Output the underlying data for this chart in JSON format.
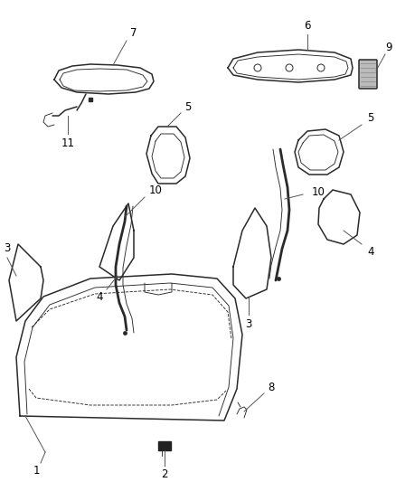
{
  "bg_color": "#ffffff",
  "line_color": "#2a2a2a",
  "label_fontsize": 8.5,
  "leader_color": "#555555",
  "fig_width": 4.38,
  "fig_height": 5.33,
  "dpi": 100
}
